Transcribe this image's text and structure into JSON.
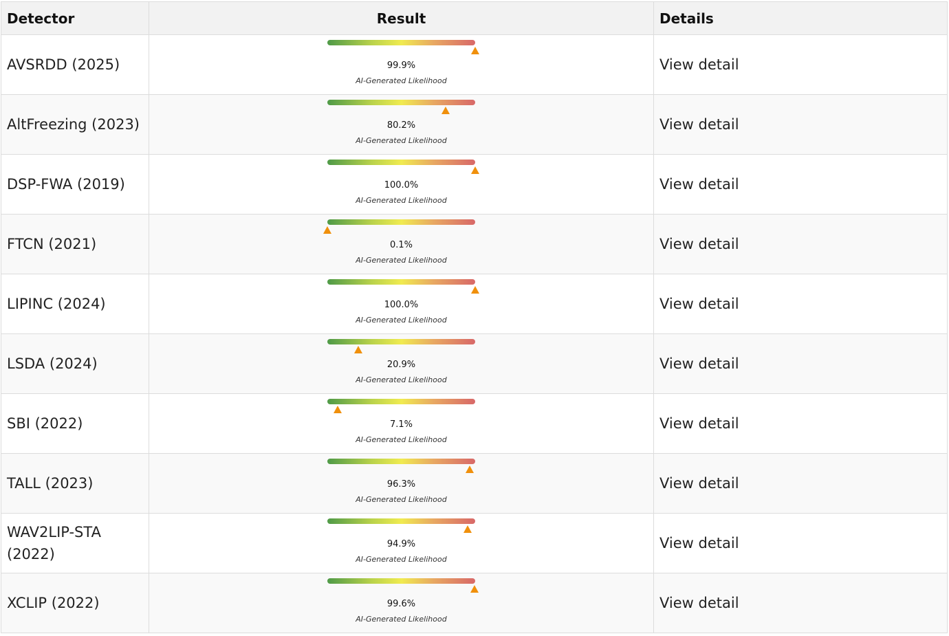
{
  "table": {
    "headers": {
      "detector": "Detector",
      "result": "Result",
      "details": "Details"
    },
    "meter_caption": "AI-Generated Likelihood",
    "marker_color": "#f0900c",
    "gradient_colors": [
      "#4f9a48",
      "#f0eb50",
      "#d86868"
    ],
    "rows": [
      {
        "detector": "AVSRDD (2025)",
        "likelihood": 99.9,
        "likelihood_text": "99.9%",
        "link": "View detail"
      },
      {
        "detector": "AltFreezing (2023)",
        "likelihood": 80.2,
        "likelihood_text": "80.2%",
        "link": "View detail"
      },
      {
        "detector": "DSP-FWA (2019)",
        "likelihood": 100.0,
        "likelihood_text": "100.0%",
        "link": "View detail"
      },
      {
        "detector": "FTCN (2021)",
        "likelihood": 0.1,
        "likelihood_text": "0.1%",
        "link": "View detail"
      },
      {
        "detector": "LIPINC (2024)",
        "likelihood": 100.0,
        "likelihood_text": "100.0%",
        "link": "View detail"
      },
      {
        "detector": "LSDA (2024)",
        "likelihood": 20.9,
        "likelihood_text": "20.9%",
        "link": "View detail"
      },
      {
        "detector": "SBI (2022)",
        "likelihood": 7.1,
        "likelihood_text": "7.1%",
        "link": "View detail"
      },
      {
        "detector": "TALL (2023)",
        "likelihood": 96.3,
        "likelihood_text": "96.3%",
        "link": "View detail"
      },
      {
        "detector": "WAV2LIP-STA (2022)",
        "likelihood": 94.9,
        "likelihood_text": "94.9%",
        "link": "View detail"
      },
      {
        "detector": "XCLIP (2022)",
        "likelihood": 99.6,
        "likelihood_text": "99.6%",
        "link": "View detail"
      }
    ]
  }
}
